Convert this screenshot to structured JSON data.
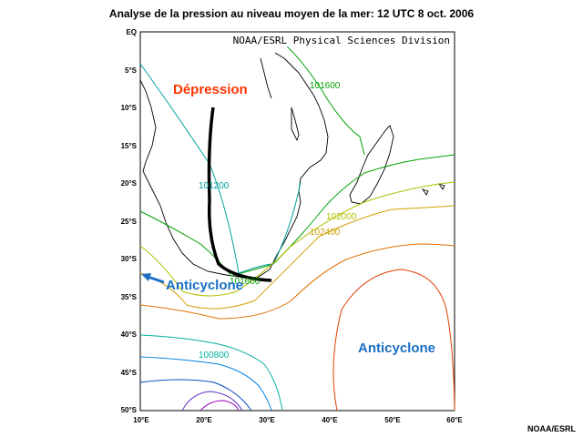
{
  "title": "Analyse de la pression au niveau moyen de la mer: 12 UTC 8 oct. 2006",
  "map_credit": "NOAA/ESRL Physical Sciences Division",
  "footer_credit": "NOAA/ESRL",
  "x_axis": {
    "ticks": [
      "10°E",
      "20°E",
      "30°E",
      "40°E",
      "50°E",
      "60°E"
    ]
  },
  "y_axis": {
    "ticks": [
      "EQ",
      "5°S",
      "10°S",
      "15°S",
      "20°S",
      "25°S",
      "30°S",
      "35°S",
      "40°S",
      "45°S",
      "50°S"
    ]
  },
  "isobar_labels": [
    "101600",
    "101200",
    "102000",
    "102400",
    "101600",
    "100800"
  ],
  "annotations": {
    "low": "Dépression",
    "high_west": "Anticyclone",
    "high_east": "Anticyclone"
  },
  "colors": {
    "low_label": "#ff3300",
    "high_label": "#1a6fc4",
    "trough_line": "#000000"
  }
}
